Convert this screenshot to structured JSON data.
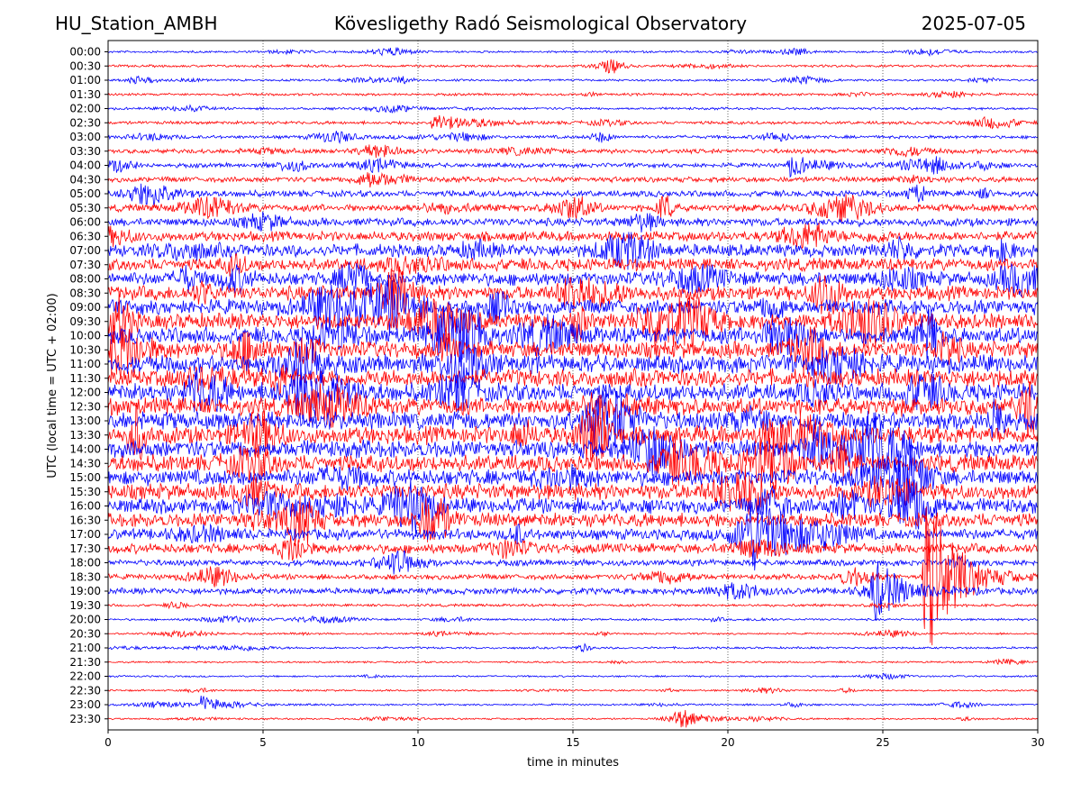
{
  "header": {
    "station": "HU_Station_AMBH",
    "observatory": "Kövesligethy Radó Seismological Observatory",
    "date": "2025-07-05"
  },
  "chart_data": {
    "type": "line",
    "title": "Kövesligethy Radó Seismological Observatory",
    "xlabel": "time in minutes",
    "ylabel": "UTC (local time = UTC + 02:00)",
    "xlim": [
      0,
      30
    ],
    "x_ticks": [
      0,
      5,
      10,
      15,
      20,
      25,
      30
    ],
    "x_tick_labels": [
      "0",
      "5",
      "10",
      "15",
      "20",
      "25",
      "30"
    ],
    "grid": "vertical dotted lines at x ticks",
    "colors": [
      "#0000ff",
      "#ff0000"
    ],
    "traces": [
      {
        "label": "00:00",
        "amplitude": 0.12
      },
      {
        "label": "00:30",
        "amplitude": 0.14
      },
      {
        "label": "01:00",
        "amplitude": 0.12
      },
      {
        "label": "01:30",
        "amplitude": 0.14
      },
      {
        "label": "02:00",
        "amplitude": 0.14
      },
      {
        "label": "02:30",
        "amplitude": 0.18
      },
      {
        "label": "03:00",
        "amplitude": 0.18
      },
      {
        "label": "03:30",
        "amplitude": 0.25
      },
      {
        "label": "04:00",
        "amplitude": 0.25
      },
      {
        "label": "04:30",
        "amplitude": 0.3
      },
      {
        "label": "05:00",
        "amplitude": 0.35
      },
      {
        "label": "05:30",
        "amplitude": 0.4
      },
      {
        "label": "06:00",
        "amplitude": 0.45
      },
      {
        "label": "06:30",
        "amplitude": 0.55
      },
      {
        "label": "07:00",
        "amplitude": 0.7
      },
      {
        "label": "07:30",
        "amplitude": 0.7
      },
      {
        "label": "08:00",
        "amplitude": 0.75
      },
      {
        "label": "08:30",
        "amplitude": 0.8
      },
      {
        "label": "09:00",
        "amplitude": 0.85
      },
      {
        "label": "09:30",
        "amplitude": 0.9
      },
      {
        "label": "10:00",
        "amplitude": 0.95
      },
      {
        "label": "10:30",
        "amplitude": 0.95
      },
      {
        "label": "11:00",
        "amplitude": 1.0
      },
      {
        "label": "11:30",
        "amplitude": 1.0
      },
      {
        "label": "12:00",
        "amplitude": 1.0
      },
      {
        "label": "12:30",
        "amplitude": 1.0
      },
      {
        "label": "13:00",
        "amplitude": 1.0
      },
      {
        "label": "13:30",
        "amplitude": 1.0
      },
      {
        "label": "14:00",
        "amplitude": 1.0
      },
      {
        "label": "14:30",
        "amplitude": 0.95
      },
      {
        "label": "15:00",
        "amplitude": 0.9
      },
      {
        "label": "15:30",
        "amplitude": 0.9
      },
      {
        "label": "16:00",
        "amplitude": 0.85
      },
      {
        "label": "16:30",
        "amplitude": 0.8
      },
      {
        "label": "17:00",
        "amplitude": 0.6
      },
      {
        "label": "17:30",
        "amplitude": 0.55
      },
      {
        "label": "18:00",
        "amplitude": 0.35
      },
      {
        "label": "18:30",
        "amplitude": 0.3
      },
      {
        "label": "19:00",
        "amplitude": 0.35
      },
      {
        "label": "19:30",
        "amplitude": 0.15
      },
      {
        "label": "20:00",
        "amplitude": 0.12
      },
      {
        "label": "20:30",
        "amplitude": 0.1
      },
      {
        "label": "21:00",
        "amplitude": 0.12
      },
      {
        "label": "21:30",
        "amplitude": 0.1
      },
      {
        "label": "22:00",
        "amplitude": 0.1
      },
      {
        "label": "22:30",
        "amplitude": 0.1
      },
      {
        "label": "23:00",
        "amplitude": 0.1
      },
      {
        "label": "23:30",
        "amplitude": 0.1
      }
    ],
    "events": [
      {
        "trace": "18:30",
        "minute": 26.4,
        "amplitude": 6.0
      },
      {
        "trace": "19:00",
        "minute": 24.7,
        "amplitude": 2.0
      },
      {
        "trace": "02:30",
        "minute": 10.5,
        "amplitude": 0.7
      },
      {
        "trace": "04:00",
        "minute": 22.0,
        "amplitude": 0.7
      },
      {
        "trace": "23:00",
        "minute": 3.0,
        "amplitude": 0.6
      },
      {
        "trace": "23:30",
        "minute": 18.4,
        "amplitude": 0.6
      }
    ]
  }
}
